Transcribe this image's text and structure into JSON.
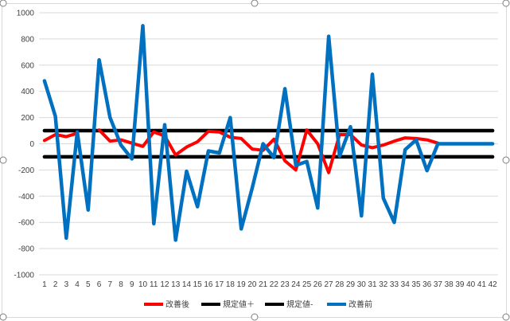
{
  "chart_data": {
    "type": "line",
    "title": "",
    "xlabel": "",
    "ylabel": "",
    "ylim": [
      -1000,
      1000
    ],
    "yticks": [
      1000,
      800,
      600,
      400,
      200,
      0,
      -200,
      -400,
      -600,
      -800,
      -1000
    ],
    "yticks_labels": [
      "1000",
      "800",
      "600",
      "400",
      "200",
      "0",
      "-200",
      "-400",
      "-600",
      "-800",
      "-1000"
    ],
    "categories": [
      "1",
      "2",
      "3",
      "4",
      "5",
      "6",
      "7",
      "8",
      "9",
      "10",
      "11",
      "12",
      "13",
      "14",
      "15",
      "16",
      "17",
      "18",
      "19",
      "20",
      "21",
      "22",
      "23",
      "24",
      "25",
      "26",
      "27",
      "28",
      "29",
      "30",
      "31",
      "32",
      "33",
      "34",
      "35",
      "36",
      "37",
      "38",
      "39",
      "40",
      "41",
      "42"
    ],
    "grid": true,
    "legend_position": "bottom",
    "series": [
      {
        "name": "改善後",
        "color": "#ff0000",
        "values": [
          25,
          70,
          55,
          80,
          null,
          105,
          20,
          30,
          5,
          -20,
          90,
          60,
          -85,
          -25,
          15,
          95,
          90,
          50,
          40,
          -40,
          -50,
          35,
          -130,
          -200,
          105,
          0,
          -220,
          70,
          70,
          -10,
          -30,
          -10,
          20,
          45,
          40,
          30,
          5,
          null,
          null,
          null,
          null,
          null
        ]
      },
      {
        "name": "規定値＋",
        "color": "#000000",
        "values": [
          100,
          100,
          100,
          100,
          100,
          100,
          100,
          100,
          100,
          100,
          100,
          100,
          100,
          100,
          100,
          100,
          100,
          100,
          100,
          100,
          100,
          100,
          100,
          100,
          100,
          100,
          100,
          100,
          100,
          100,
          100,
          100,
          100,
          100,
          100,
          100,
          100,
          100,
          100,
          100,
          100,
          100
        ]
      },
      {
        "name": "規定値-",
        "color": "#000000",
        "values": [
          -100,
          -100,
          -100,
          -100,
          -100,
          -100,
          -100,
          -100,
          -100,
          -100,
          -100,
          -100,
          -100,
          -100,
          -100,
          -100,
          -100,
          -100,
          -100,
          -100,
          -100,
          -100,
          -100,
          -100,
          -100,
          -100,
          -100,
          -100,
          -100,
          -100,
          -100,
          -100,
          -100,
          -100,
          -100,
          -100,
          -100,
          -100,
          -100,
          -100,
          -100,
          -100
        ]
      },
      {
        "name": "改善前",
        "color": "#0070c0",
        "values": [
          480,
          210,
          -720,
          90,
          -505,
          640,
          200,
          -10,
          -115,
          900,
          -610,
          145,
          -735,
          -210,
          -480,
          -55,
          -70,
          200,
          -650,
          -340,
          0,
          -105,
          420,
          -165,
          -135,
          -490,
          820,
          -95,
          130,
          -550,
          530,
          -415,
          -600,
          -45,
          30,
          -205,
          0,
          0,
          0,
          0,
          0,
          0
        ]
      }
    ]
  }
}
